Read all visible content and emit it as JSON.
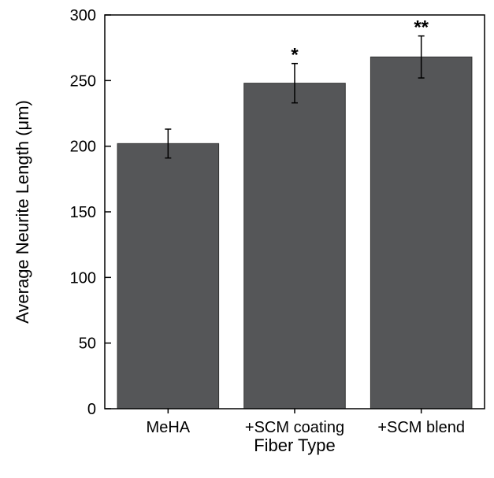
{
  "chart_data": {
    "type": "bar",
    "title": "",
    "xlabel": "Fiber Type",
    "ylabel": "Average Neurite Length (μm)",
    "ylim": [
      0,
      300
    ],
    "yticks": [
      0,
      50,
      100,
      150,
      200,
      250,
      300
    ],
    "categories": [
      "MeHA",
      "+SCM coating",
      "+SCM blend"
    ],
    "values": [
      202,
      248,
      268
    ],
    "errors": [
      11,
      15,
      16
    ],
    "significance": [
      "",
      "*",
      "**"
    ],
    "bar_color": "#555658",
    "grid": false,
    "legend": "none"
  }
}
